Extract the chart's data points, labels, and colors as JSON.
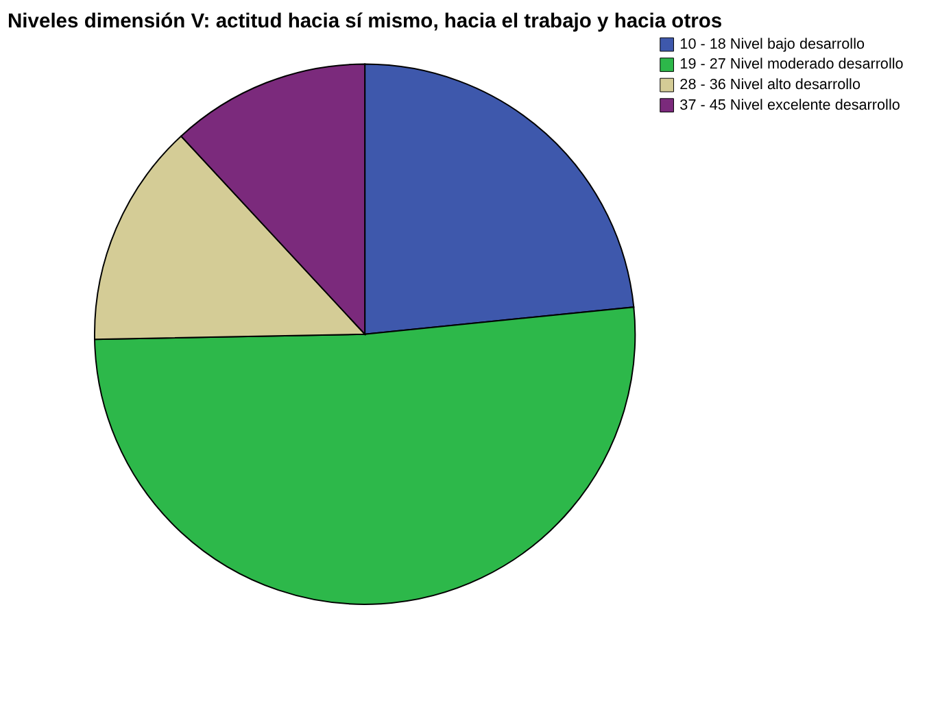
{
  "chart_data": {
    "type": "pie",
    "title": "Niveles dimensión V: actitud hacia sí mismo, hacia el trabajo y hacia otros",
    "categories": [
      "10   -   18 Nivel bajo desarrollo",
      "19   -   27 Nivel moderado desarrollo",
      "28   -   36 Nivel alto desarrollo",
      "37   -   45 Nivel excelente desarrollo"
    ],
    "values": [
      23.4,
      51.3,
      13.4,
      11.9
    ],
    "colors": [
      "#3e58ac",
      "#2db84a",
      "#d4cc96",
      "#7b2a7c"
    ],
    "legend": "top right"
  }
}
